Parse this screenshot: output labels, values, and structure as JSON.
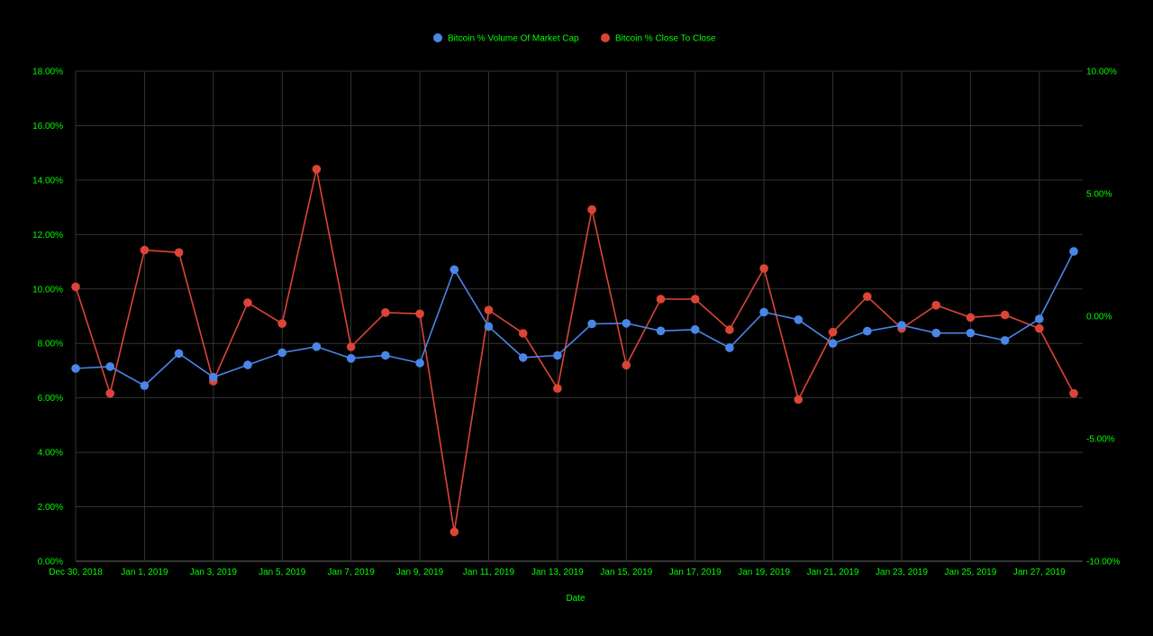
{
  "chart_data": {
    "type": "line",
    "xlabel": "Date",
    "x_ticks": [
      "Dec 30, 2018",
      "Jan 1, 2019",
      "Jan 3, 2019",
      "Jan 5, 2019",
      "Jan 7, 2019",
      "Jan 9, 2019",
      "Jan 11, 2019",
      "Jan 13, 2019",
      "Jan 15, 2019",
      "Jan 17, 2019",
      "Jan 19, 2019",
      "Jan 21, 2019",
      "Jan 23, 2019",
      "Jan 25, 2019",
      "Jan 27, 2019"
    ],
    "x": [
      "2018-12-30",
      "2018-12-31",
      "2019-01-01",
      "2019-01-02",
      "2019-01-03",
      "2019-01-04",
      "2019-01-05",
      "2019-01-06",
      "2019-01-07",
      "2019-01-08",
      "2019-01-09",
      "2019-01-10",
      "2019-01-11",
      "2019-01-12",
      "2019-01-13",
      "2019-01-14",
      "2019-01-15",
      "2019-01-16",
      "2019-01-17",
      "2019-01-18",
      "2019-01-19",
      "2019-01-20",
      "2019-01-21",
      "2019-01-22",
      "2019-01-23",
      "2019-01-24",
      "2019-01-25",
      "2019-01-26",
      "2019-01-27",
      "2019-01-28"
    ],
    "y_left": {
      "ticks": [
        "0.00%",
        "2.00%",
        "4.00%",
        "6.00%",
        "8.00%",
        "10.00%",
        "12.00%",
        "14.00%",
        "16.00%",
        "18.00%"
      ],
      "range": [
        0,
        18
      ]
    },
    "y_right": {
      "ticks": [
        "-10.00%",
        "-5.00%",
        "0.00%",
        "5.00%",
        "10.00%"
      ],
      "range": [
        -10,
        10
      ]
    },
    "grid": true,
    "legend_position": "top",
    "series": [
      {
        "name": "Bitcoin % Volume Of Market Cap",
        "axis": "left",
        "color": "#4a86e8",
        "values": [
          7.08,
          7.15,
          6.45,
          7.63,
          6.76,
          7.21,
          7.66,
          7.88,
          7.45,
          7.56,
          7.28,
          10.71,
          8.62,
          7.48,
          7.56,
          8.72,
          8.74,
          8.46,
          8.51,
          7.84,
          9.15,
          8.87,
          8.0,
          8.45,
          8.67,
          8.38,
          8.38,
          8.11,
          8.9,
          11.38
        ]
      },
      {
        "name": "Bitcoin % Close To Close",
        "axis": "right",
        "color": "#dc4437",
        "values": [
          1.2,
          -3.15,
          2.7,
          2.6,
          -2.65,
          0.55,
          -0.3,
          6.0,
          -1.25,
          0.15,
          0.1,
          -8.8,
          0.25,
          -0.7,
          -2.95,
          4.35,
          -2.0,
          0.7,
          0.7,
          -0.55,
          1.95,
          -3.4,
          -0.65,
          0.8,
          -0.5,
          0.45,
          -0.05,
          0.05,
          -0.5,
          -3.15
        ]
      }
    ]
  },
  "theme": {
    "background": "#000000",
    "text_color": "#00ff00",
    "grid_color": "#333333"
  }
}
